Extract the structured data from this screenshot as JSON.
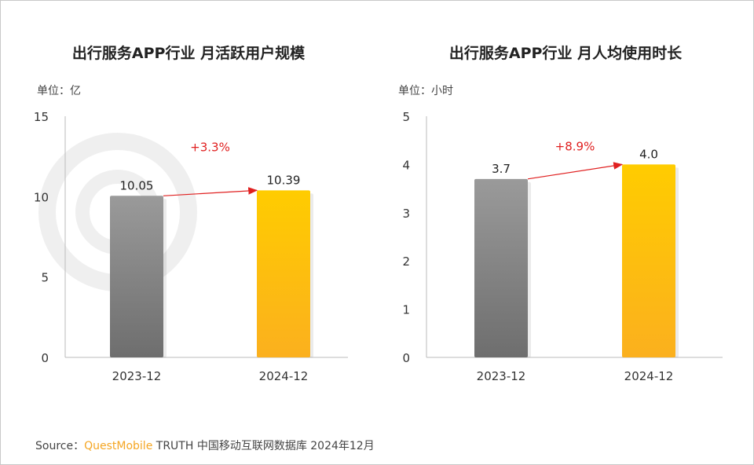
{
  "chart_data": [
    {
      "type": "bar",
      "title": "出行服务APP行业 月活跃用户规模",
      "unit_label": "单位：亿",
      "categories": [
        "2023-12",
        "2024-12"
      ],
      "values": [
        10.05,
        10.39
      ],
      "value_labels": [
        "10.05",
        "10.39"
      ],
      "ylim": [
        0,
        15
      ],
      "yticks": [
        "0",
        "5",
        "10",
        "15"
      ],
      "ytick_values": [
        0,
        5,
        10,
        15
      ],
      "growth_label": "+3.3%",
      "bar_colors": [
        "#8a8a8a",
        "#ffc000"
      ],
      "grid": false
    },
    {
      "type": "bar",
      "title": "出行服务APP行业 月人均使用时长",
      "unit_label": "单位：小时",
      "categories": [
        "2023-12",
        "2024-12"
      ],
      "values": [
        3.7,
        4.0
      ],
      "value_labels": [
        "3.7",
        "4.0"
      ],
      "ylim": [
        0,
        5
      ],
      "yticks": [
        "0",
        "1",
        "2",
        "3",
        "4",
        "5"
      ],
      "ytick_values": [
        0,
        1,
        2,
        3,
        4,
        5
      ],
      "growth_label": "+8.9%",
      "bar_colors": [
        "#8a8a8a",
        "#ffc000"
      ],
      "grid": false
    }
  ],
  "source": {
    "prefix": "Source：",
    "brand": "QuestMobile",
    "text": "TRUTH 中国移动互联网数据库 2024年12月"
  },
  "colors": {
    "arrow": "#e02020",
    "growth": "#e02020",
    "brand": "#f5a623"
  }
}
